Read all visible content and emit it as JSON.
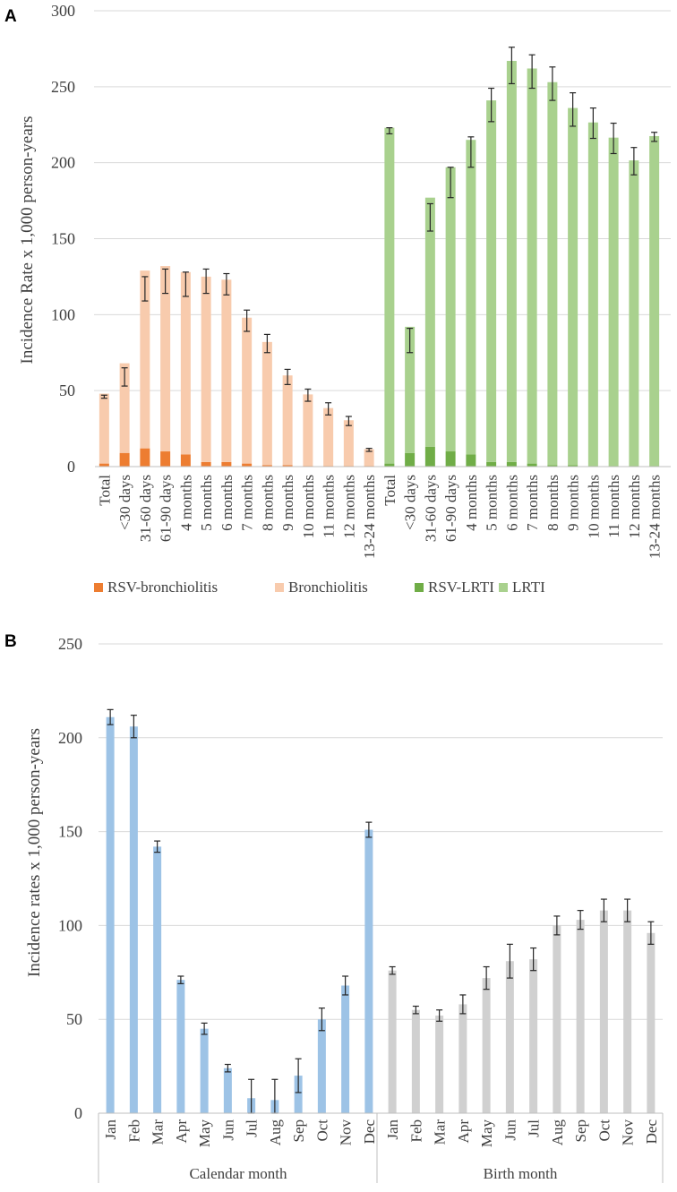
{
  "colors": {
    "rsv_bronchiolitis": "#ED7D31",
    "bronchiolitis": "#F8CBAD",
    "rsv_lrti": "#70AD47",
    "lrti": "#A9D18E",
    "calendar": "#9DC3E6",
    "birth": "#D0D0D0",
    "grid": "#D9D9D9",
    "axis": "#BFBFBF",
    "error": "#262626"
  },
  "chart_data": [
    {
      "panel_label": "A",
      "type": "bar",
      "stacked": true,
      "ylabel": "Incidence Rate x 1,000 person-years",
      "ylim": [
        0,
        300
      ],
      "yticks": [
        "0",
        "50",
        "100",
        "150",
        "200",
        "250",
        "300"
      ],
      "grid": true,
      "legend": [
        "RSV-bronchiolitis",
        "Bronchiolitis",
        "RSV-LRTI",
        "LRTI"
      ],
      "legend_position": "bottom",
      "categories": [
        "Total",
        "<30 days",
        "31-60 days",
        "61-90 days",
        "4 months",
        "5 months",
        "6 months",
        "7 months",
        "8 months",
        "9 months",
        "10 months",
        "11 months",
        "12 months",
        "13-24 months",
        "Total",
        "<30 days",
        "31-60 days",
        "61-90 days",
        "4 months",
        "5 months",
        "6 months",
        "7 months",
        "8 months",
        "9 months",
        "10 months",
        "11 months",
        "12 months",
        "13-24 months"
      ],
      "groups": [
        {
          "series": [
            {
              "name": "RSV-bronchiolitis",
              "color_key": "rsv_bronchiolitis",
              "values": [
                2,
                9,
                12,
                10,
                8,
                3,
                3,
                2,
                1,
                1,
                0.5,
                0.5,
                0.5,
                0.5
              ]
            },
            {
              "name": "Bronchiolitis",
              "color_key": "bronchiolitis",
              "values": [
                46,
                59,
                117,
                122,
                120,
                122,
                120,
                96,
                81,
                59,
                47,
                38,
                30,
                11
              ]
            }
          ],
          "error": [
            1,
            6,
            8,
            8,
            8,
            8,
            7,
            7,
            6,
            5,
            4,
            4,
            3,
            1
          ]
        },
        {
          "series": [
            {
              "name": "RSV-LRTI",
              "color_key": "rsv_lrti",
              "values": [
                2,
                9,
                13,
                10,
                8,
                3,
                3,
                2,
                1,
                1,
                0.5,
                0.5,
                0.5,
                0.5
              ]
            },
            {
              "name": "LRTI",
              "color_key": "lrti",
              "values": [
                221,
                83,
                164,
                187,
                207,
                238,
                264,
                260,
                252,
                235,
                226,
                216,
                201,
                217
              ]
            }
          ],
          "error": [
            2,
            8,
            9,
            10,
            10,
            11,
            12,
            11,
            11,
            11,
            10,
            10,
            9,
            3
          ]
        }
      ]
    },
    {
      "panel_label": "B",
      "type": "bar",
      "ylabel": "Incidence rates x 1,000 person-years",
      "ylim": [
        0,
        250
      ],
      "yticks": [
        "0",
        "50",
        "100",
        "150",
        "200",
        "250"
      ],
      "grid": true,
      "categories": [
        "Jan",
        "Feb",
        "Mar",
        "Apr",
        "May",
        "Jun",
        "Jul",
        "Aug",
        "Sep",
        "Oct",
        "Nov",
        "Dec",
        "Jan",
        "Feb",
        "Mar",
        "Apr",
        "May",
        "Jun",
        "Jul",
        "Aug",
        "Sep",
        "Oct",
        "Nov",
        "Dec"
      ],
      "group_labels": [
        "Calendar month",
        "Birth month"
      ],
      "groups": [
        {
          "name": "Calendar month",
          "color_key": "calendar",
          "values": [
            211,
            206,
            142,
            71,
            45,
            24,
            8,
            7,
            20,
            50,
            68,
            151
          ],
          "error": [
            4,
            6,
            3,
            2,
            3,
            2,
            10,
            11,
            9,
            6,
            5,
            4
          ]
        },
        {
          "name": "Birth month",
          "color_key": "birth",
          "values": [
            76,
            55,
            52,
            58,
            72,
            81,
            82,
            100,
            103,
            108,
            108,
            96
          ],
          "error": [
            2,
            2,
            3,
            5,
            6,
            9,
            6,
            5,
            5,
            6,
            6,
            6
          ]
        }
      ]
    }
  ]
}
